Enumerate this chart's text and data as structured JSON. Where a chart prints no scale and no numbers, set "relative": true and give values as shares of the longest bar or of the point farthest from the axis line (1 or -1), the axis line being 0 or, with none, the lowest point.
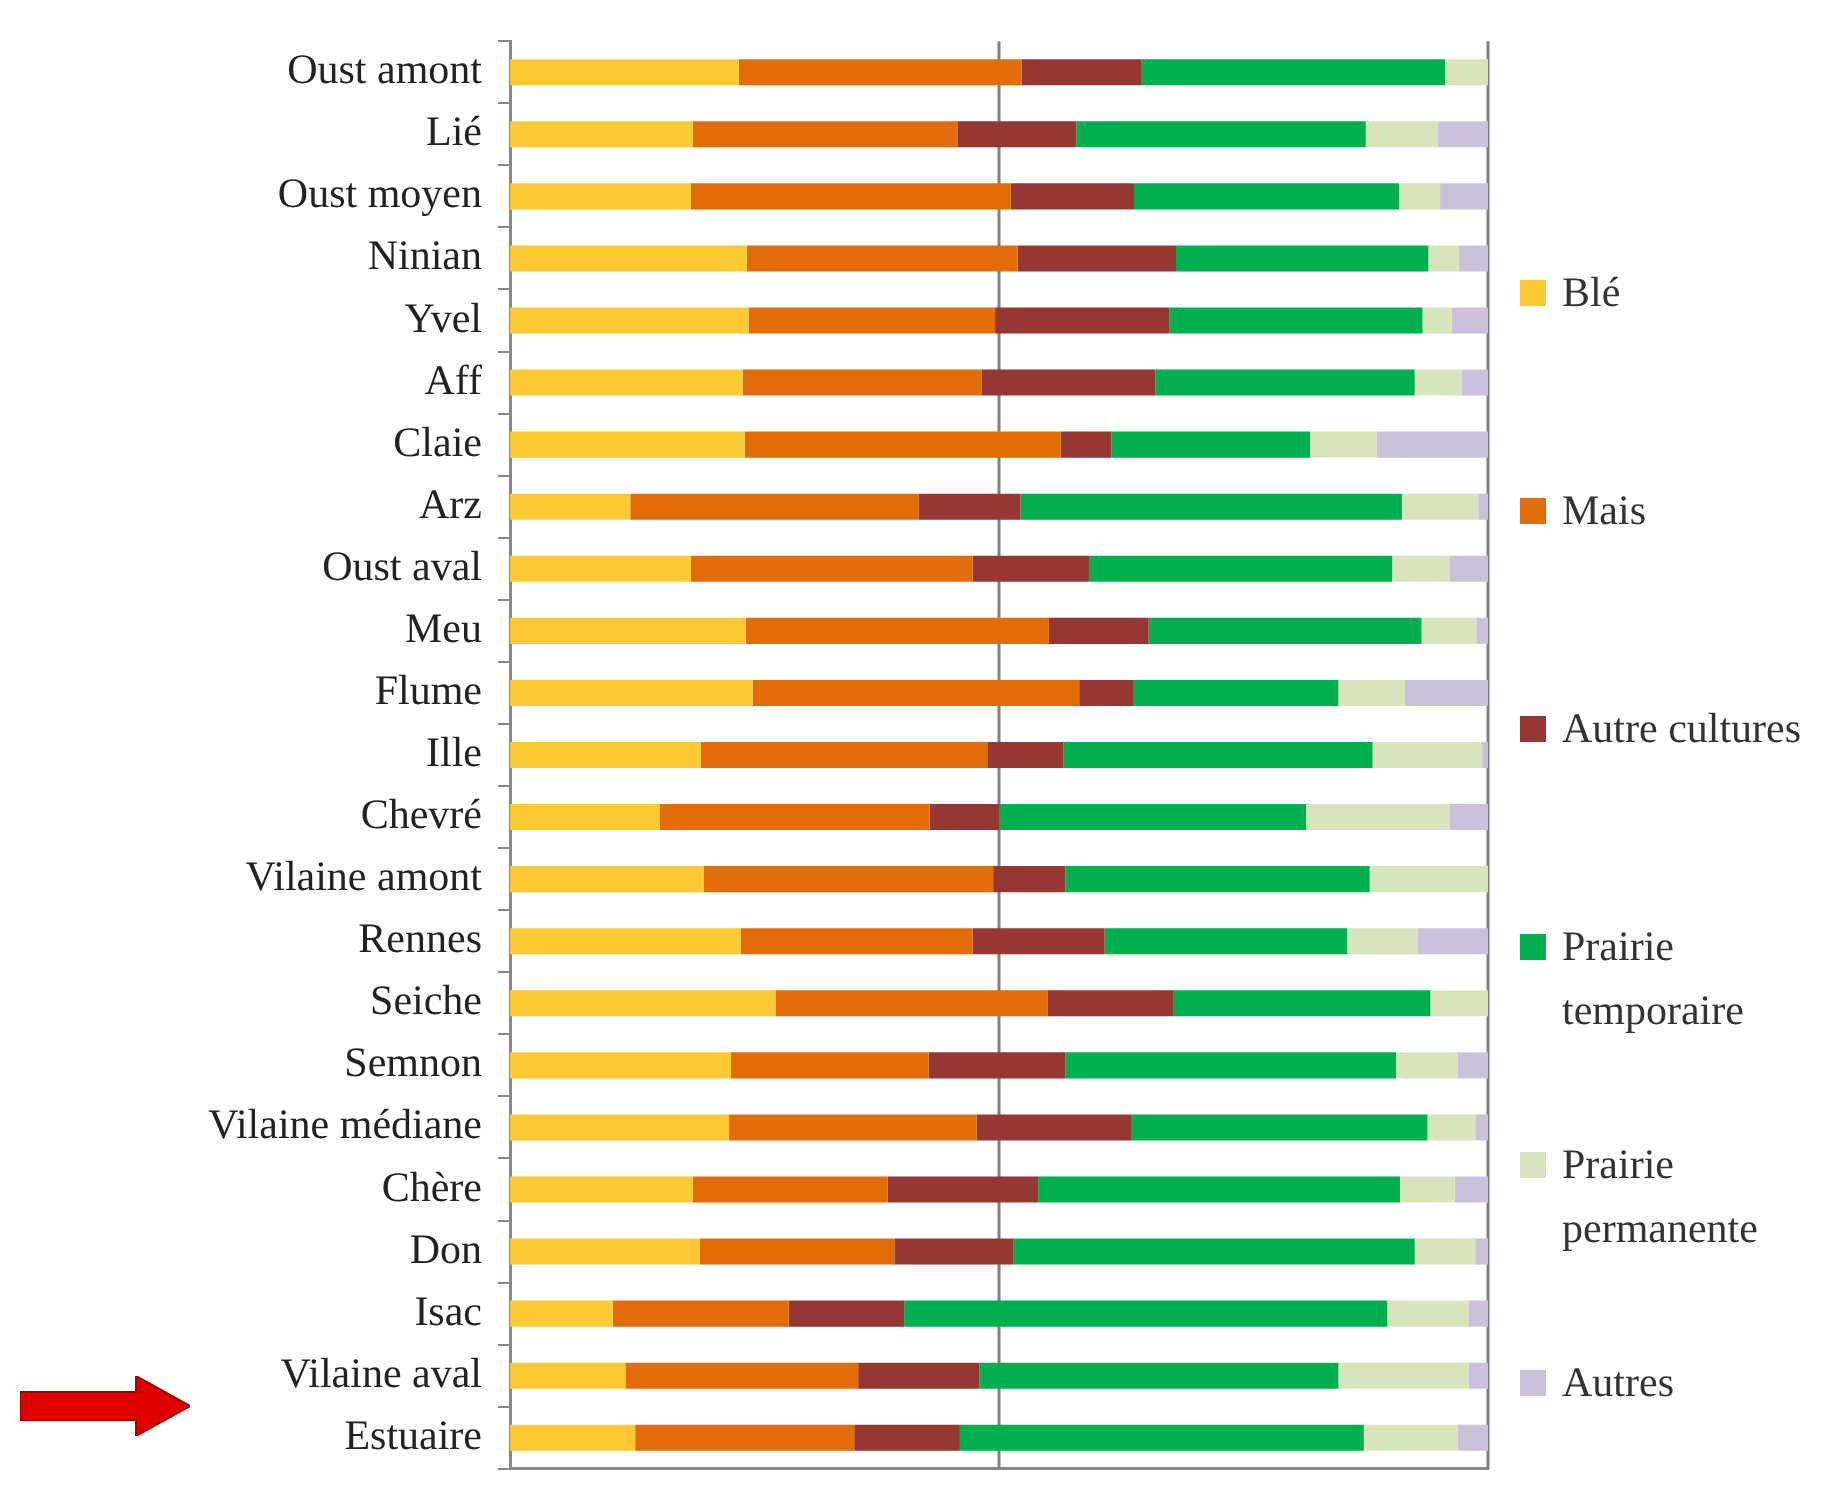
{
  "chart_data": {
    "type": "bar",
    "orientation": "horizontal",
    "stacked": true,
    "relative": true,
    "legend": "right",
    "grid": false,
    "categories": [
      "Oust amont",
      "Lié",
      "Oust moyen",
      "Ninian",
      "Yvel",
      "Aff",
      "Claie",
      "Arz",
      "Oust aval",
      "Meu",
      "Flume",
      "Ille",
      "Chevré",
      "Vilaine amont",
      "Rennes",
      "Seiche",
      "Semnon",
      "Vilaine médiane",
      "Chère",
      "Don",
      "Isac",
      "Vilaine aval",
      "Estuaire"
    ],
    "series": [
      {
        "name": "Blé",
        "color": "#fcc934",
        "values": [
          0.234,
          0.187,
          0.185,
          0.242,
          0.244,
          0.238,
          0.24,
          0.123,
          0.185,
          0.241,
          0.248,
          0.195,
          0.153,
          0.198,
          0.236,
          0.272,
          0.226,
          0.224,
          0.187,
          0.194,
          0.105,
          0.118,
          0.128
        ]
      },
      {
        "name": "Mais",
        "color": "#e36c0a",
        "values": [
          0.289,
          0.271,
          0.327,
          0.277,
          0.252,
          0.244,
          0.323,
          0.295,
          0.288,
          0.31,
          0.334,
          0.293,
          0.276,
          0.296,
          0.237,
          0.278,
          0.202,
          0.253,
          0.199,
          0.199,
          0.18,
          0.238,
          0.224
        ]
      },
      {
        "name": "Autre cultures",
        "color": "#953735",
        "values": [
          0.123,
          0.121,
          0.126,
          0.162,
          0.178,
          0.178,
          0.052,
          0.104,
          0.119,
          0.102,
          0.055,
          0.078,
          0.071,
          0.074,
          0.135,
          0.128,
          0.14,
          0.158,
          0.154,
          0.122,
          0.118,
          0.124,
          0.108
        ]
      },
      {
        "name": "Prairie temporaire",
        "color": "#00b050",
        "values": [
          0.31,
          0.296,
          0.271,
          0.258,
          0.259,
          0.265,
          0.203,
          0.39,
          0.31,
          0.279,
          0.21,
          0.316,
          0.314,
          0.311,
          0.248,
          0.263,
          0.338,
          0.303,
          0.37,
          0.41,
          0.494,
          0.367,
          0.413
        ]
      },
      {
        "name": "Prairie permanente",
        "color": "#d7e4bd",
        "values": [
          0.044,
          0.074,
          0.042,
          0.031,
          0.03,
          0.048,
          0.068,
          0.078,
          0.059,
          0.056,
          0.068,
          0.112,
          0.147,
          0.121,
          0.072,
          0.059,
          0.063,
          0.049,
          0.056,
          0.062,
          0.083,
          0.133,
          0.096
        ]
      },
      {
        "name": "Autres",
        "color": "#ccc1da",
        "values": [
          0,
          0.051,
          0.049,
          0.03,
          0.037,
          0.027,
          0.114,
          0.01,
          0.039,
          0.012,
          0.085,
          0.006,
          0.039,
          0,
          0.072,
          0,
          0.031,
          0.013,
          0.034,
          0.013,
          0.02,
          0.02,
          0.031
        ]
      }
    ],
    "ref_lines": [
      {
        "axis": "x",
        "value": 0.5,
        "color": "#808080"
      },
      {
        "axis": "x",
        "value": 1,
        "color": "#808080"
      }
    ]
  }
}
